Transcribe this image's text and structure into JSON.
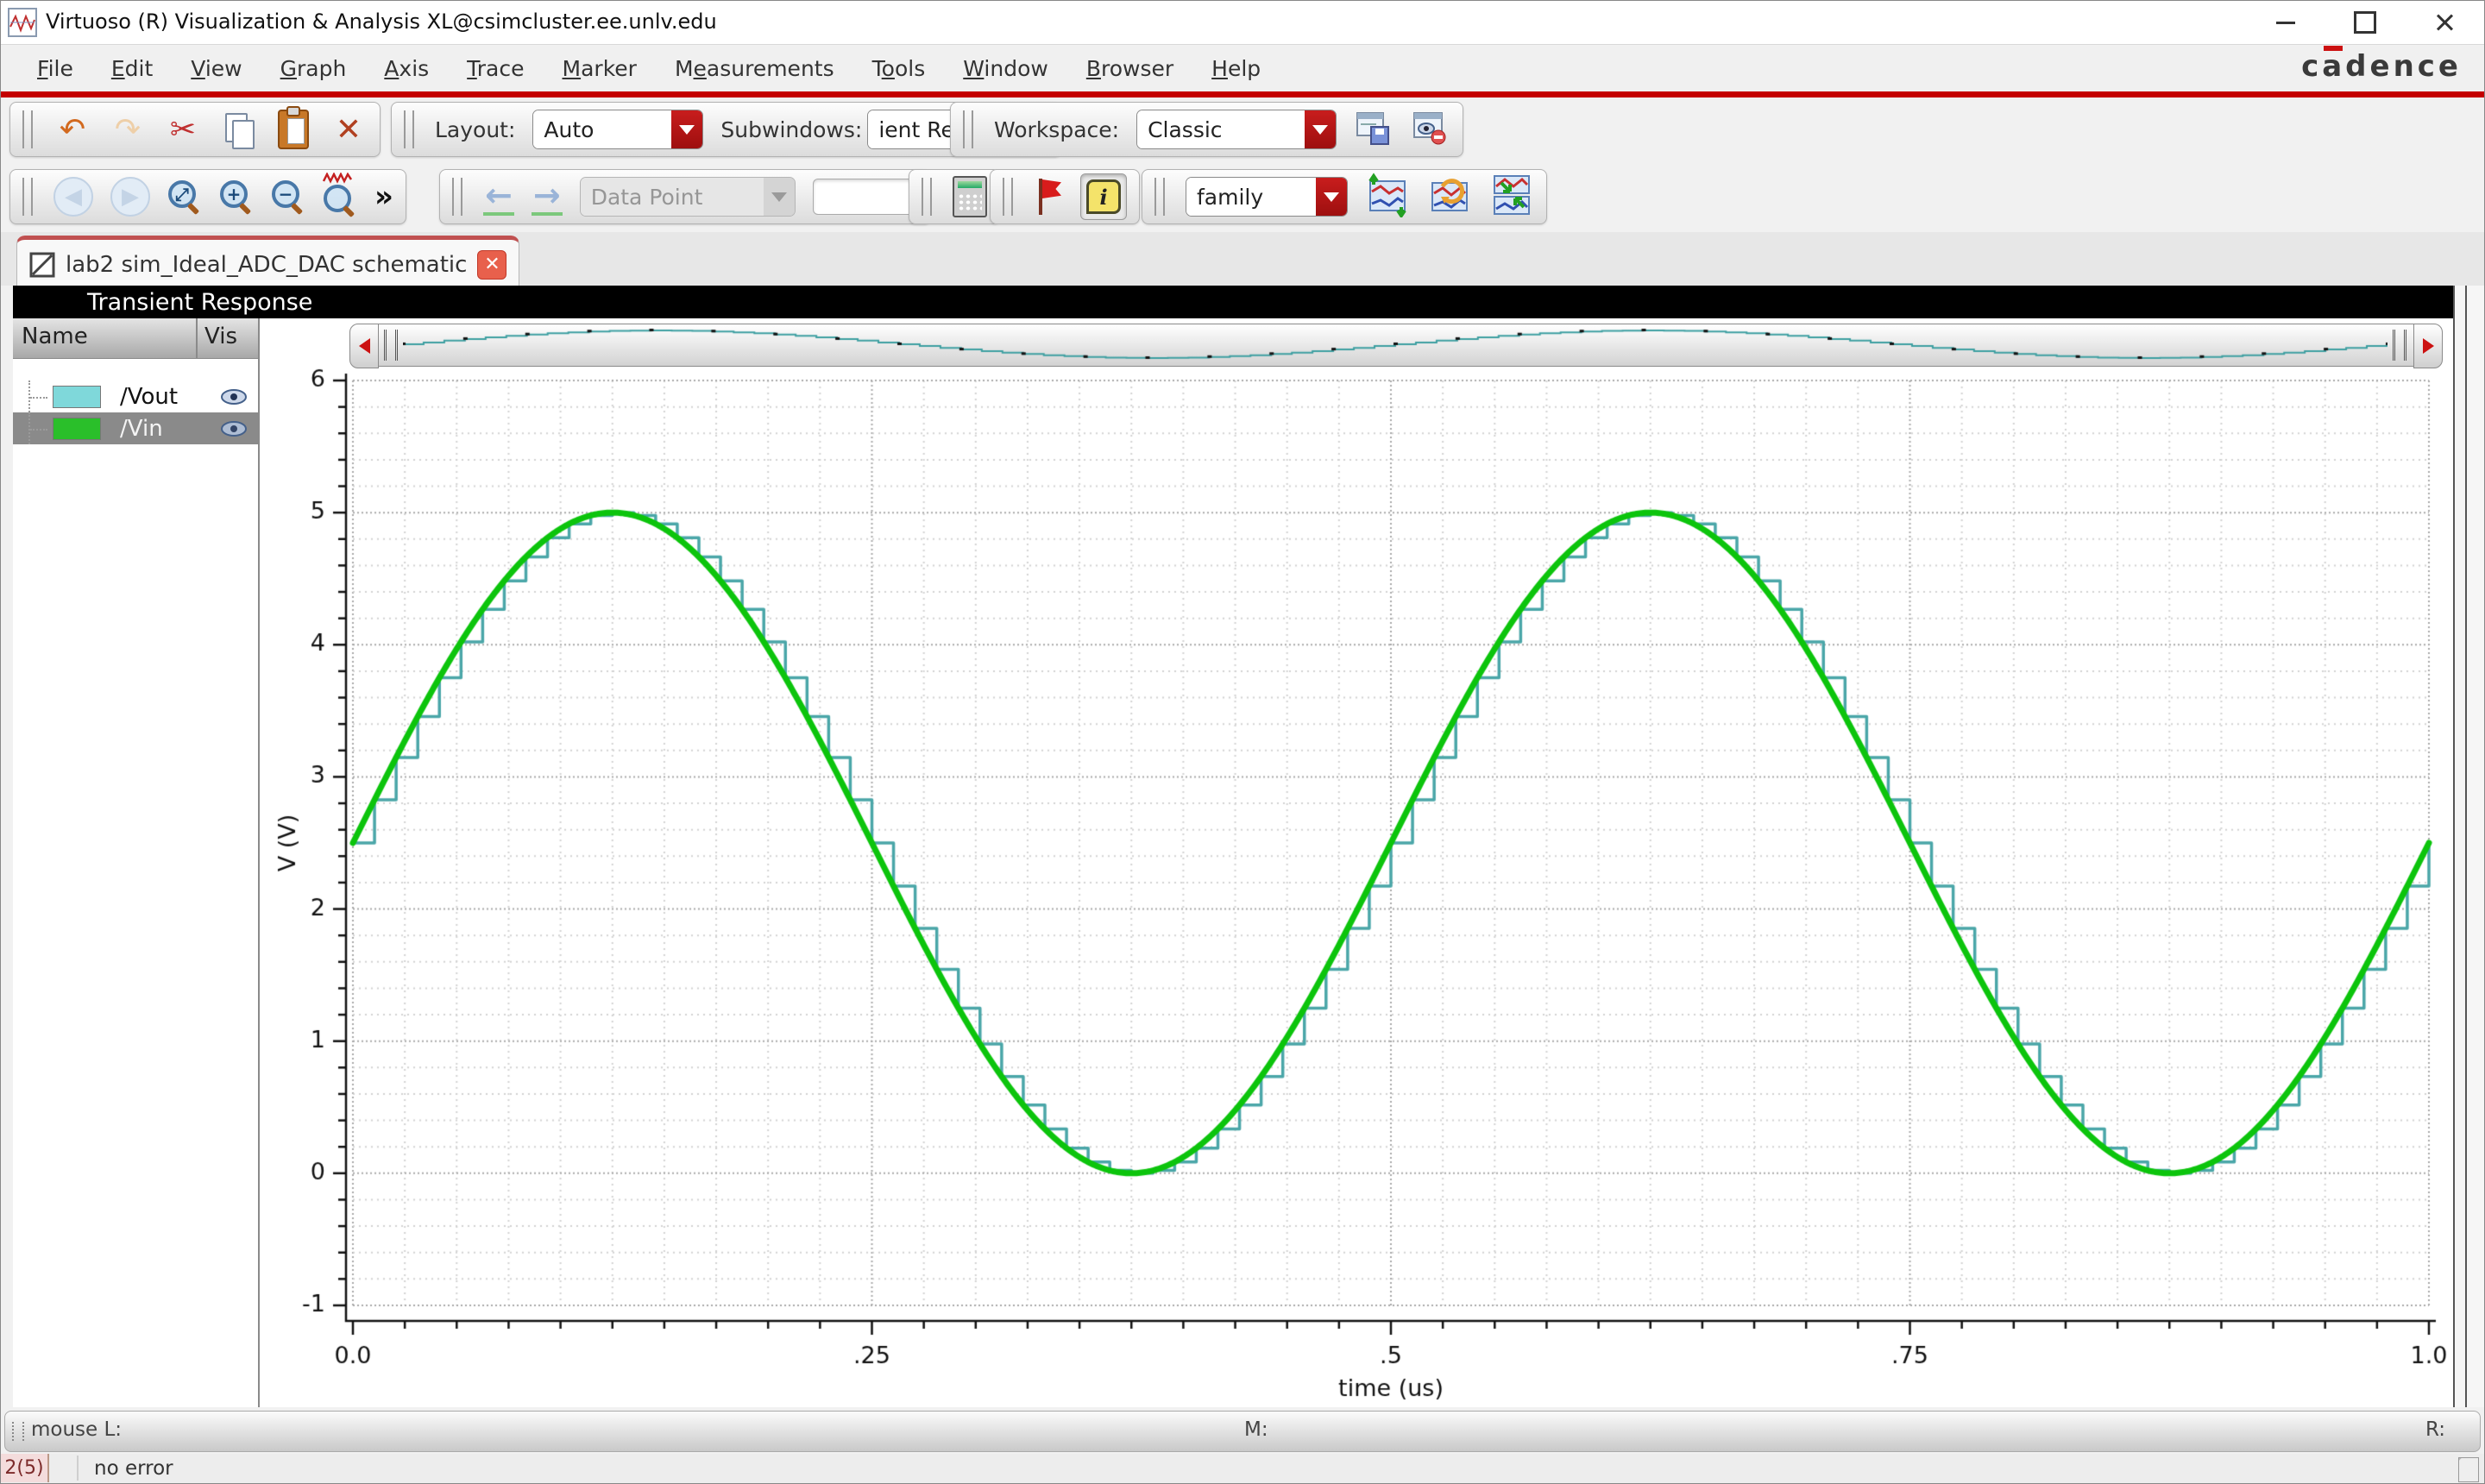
{
  "window": {
    "title": "Virtuoso (R) Visualization & Analysis XL@csimcluster.ee.unlv.edu"
  },
  "brand": {
    "pre": "c",
    "accent": "a",
    "post": "dence",
    "accent_color": "#cc1111"
  },
  "menu": {
    "items": [
      {
        "pre": "",
        "key": "F",
        "post": "ile"
      },
      {
        "pre": "",
        "key": "E",
        "post": "dit"
      },
      {
        "pre": "",
        "key": "V",
        "post": "iew"
      },
      {
        "pre": "",
        "key": "G",
        "post": "raph"
      },
      {
        "pre": "",
        "key": "A",
        "post": "xis"
      },
      {
        "pre": "",
        "key": "T",
        "post": "race"
      },
      {
        "pre": "",
        "key": "M",
        "post": "arker"
      },
      {
        "pre": "M",
        "key": "e",
        "post": "asurements"
      },
      {
        "pre": "T",
        "key": "o",
        "post": "ols"
      },
      {
        "pre": "",
        "key": "W",
        "post": "indow"
      },
      {
        "pre": "",
        "key": "B",
        "post": "rowser"
      },
      {
        "pre": "",
        "key": "H",
        "post": "elp"
      }
    ]
  },
  "toolbar1": {
    "layout_label": "Layout:",
    "layout_value": "Auto",
    "subwindows_label": "Subwindows:",
    "subwindows_value": "ient Response",
    "workspace_label": "Workspace:",
    "workspace_value": "Classic"
  },
  "toolbar2": {
    "overflow_glyph": "»",
    "datapoint_value": "Data Point",
    "field_value": "",
    "family_value": "family"
  },
  "tab": {
    "title": "lab2 sim_Ideal_ADC_DAC schematic"
  },
  "panel": {
    "header": "Transient Response",
    "col_name": "Name",
    "col_vis": "Vis",
    "signals": [
      {
        "name": "/Vout",
        "color": "#7fd8da",
        "selected": false
      },
      {
        "name": "/Vin",
        "color": "#2abf2a",
        "selected": true
      }
    ]
  },
  "status": {
    "mouse_left": "mouse L:",
    "middle": "M:",
    "right": "R:",
    "counter": "2(5)",
    "message": "no error"
  },
  "chart_data": {
    "type": "line",
    "title": "Transient Response",
    "xlabel": "time (us)",
    "ylabel": "V (V)",
    "xlim": [
      0,
      1
    ],
    "ylim": [
      -1,
      6
    ],
    "x_major_ticks": [
      0,
      0.25,
      0.5,
      0.75,
      1.0
    ],
    "x_tick_labels": [
      "0.0",
      ".25",
      ".5",
      ".75",
      "1.0"
    ],
    "y_major_ticks": [
      -1,
      0,
      1,
      2,
      3,
      4,
      5,
      6
    ],
    "x_minor_step": 0.025,
    "y_minor_step": 0.2,
    "grid": "dotted",
    "series": [
      {
        "name": "/Vout",
        "color": "#4aa6a8",
        "style": "staircase-zoh",
        "description": "ideal ADC/DAC sampled-and-held copy of /Vin",
        "samples_per_us": 96
      },
      {
        "name": "/Vin",
        "color": "#0cc40c",
        "style": "sine",
        "offset_v": 2.5,
        "amplitude_v": 2.5,
        "cycles_in_window": 2,
        "start_v": 2.5,
        "peak_v": 5.0,
        "min_v": 0.0,
        "peak_times_us": [
          0.125,
          0.625
        ],
        "min_times_us": [
          0.375,
          0.875
        ]
      }
    ]
  }
}
